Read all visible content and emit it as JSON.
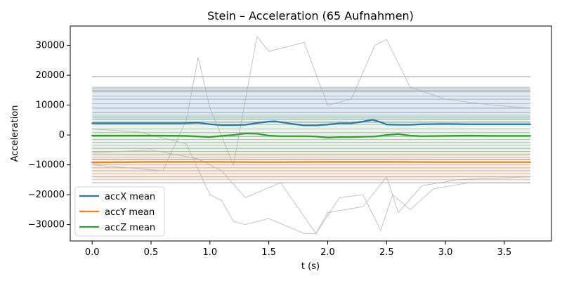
{
  "chart_data": {
    "type": "line",
    "title": "Stein – Acceleration (65 Aufnahmen)",
    "xlabel": "t (s)",
    "ylabel": "Acceleration",
    "xlim": [
      -0.186,
      3.9
    ],
    "ylim": [
      -35500,
      36500
    ],
    "xticks": [
      0.0,
      0.5,
      1.0,
      1.5,
      2.0,
      2.5,
      3.0,
      3.5
    ],
    "xtick_labels": [
      "0.0",
      "0.5",
      "1.0",
      "1.5",
      "2.0",
      "2.5",
      "3.0",
      "3.5"
    ],
    "yticks": [
      -30000,
      -20000,
      -10000,
      0,
      10000,
      20000,
      30000
    ],
    "ytick_labels": [
      "−30000",
      "−20000",
      "−10000",
      "0",
      "10000",
      "20000",
      "30000"
    ],
    "grid": false,
    "legend_position": "lower-left",
    "series": [
      {
        "name": "accX mean",
        "color": "#1f77b4",
        "x": [
          0.0,
          0.3,
          0.6,
          0.75,
          0.9,
          1.0,
          1.1,
          1.2,
          1.3,
          1.4,
          1.5,
          1.55,
          1.6,
          1.7,
          1.8,
          1.9,
          2.0,
          2.1,
          2.2,
          2.3,
          2.38,
          2.45,
          2.5,
          2.6,
          2.7,
          2.8,
          3.0,
          3.2,
          3.4,
          3.72
        ],
        "values": [
          3900,
          3900,
          3900,
          3900,
          4100,
          3600,
          3300,
          3300,
          3400,
          4000,
          4500,
          4600,
          4300,
          3700,
          3200,
          3200,
          3500,
          3900,
          3900,
          4500,
          5100,
          4300,
          3500,
          3400,
          3400,
          3600,
          3700,
          3600,
          3600,
          3600
        ]
      },
      {
        "name": "accY mean",
        "color": "#ff7f0e",
        "x": [
          0.0,
          0.5,
          1.0,
          1.5,
          2.0,
          2.5,
          3.0,
          3.5,
          3.72
        ],
        "values": [
          -9200,
          -9000,
          -9000,
          -9100,
          -9000,
          -9000,
          -9100,
          -9100,
          -9100
        ]
      },
      {
        "name": "accZ mean",
        "color": "#2ca02c",
        "x": [
          0.0,
          0.3,
          0.6,
          0.8,
          0.9,
          1.0,
          1.1,
          1.2,
          1.3,
          1.4,
          1.5,
          1.6,
          1.7,
          1.8,
          1.9,
          2.0,
          2.1,
          2.2,
          2.3,
          2.4,
          2.5,
          2.6,
          2.7,
          2.8,
          3.0,
          3.2,
          3.4,
          3.72
        ],
        "values": [
          -200,
          -200,
          -200,
          -300,
          -500,
          -700,
          -300,
          0,
          500,
          400,
          -200,
          -400,
          -400,
          -400,
          -500,
          -900,
          -700,
          -700,
          -600,
          -500,
          0,
          300,
          -200,
          -400,
          -300,
          -200,
          -300,
          -300
        ]
      }
    ]
  }
}
